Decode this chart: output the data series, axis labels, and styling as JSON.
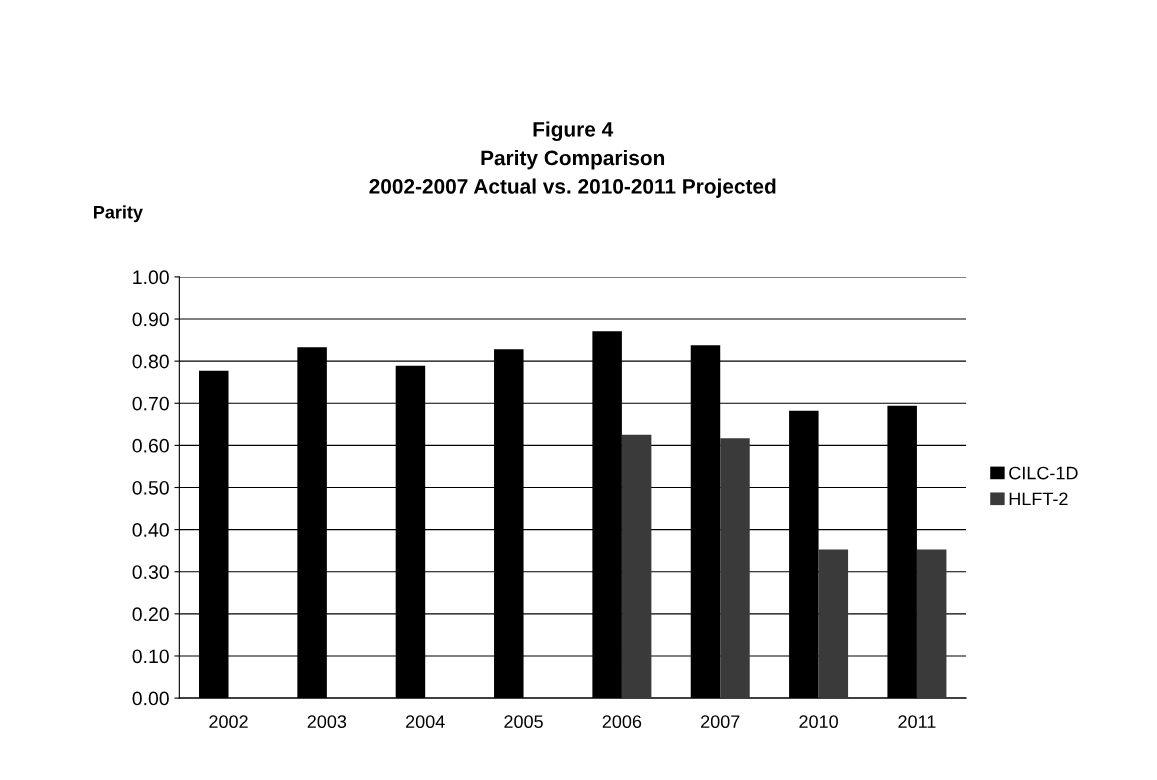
{
  "chart_data": {
    "type": "bar",
    "title": "Figure 4\nParity Comparison\n2002-2007 Actual vs. 2010-2011 Projected",
    "ylabel": "Parity",
    "categories": [
      "2002",
      "2003",
      "2004",
      "2005",
      "2006",
      "2007",
      "2010",
      "2011"
    ],
    "series": [
      {
        "name": "CILC-1D",
        "color": "#000000",
        "values": [
          0.777,
          0.833,
          0.789,
          0.828,
          0.871,
          0.838,
          0.682,
          0.694
        ]
      },
      {
        "name": "HLFT-2",
        "color": "#3a3a3a",
        "values": [
          null,
          null,
          null,
          null,
          0.625,
          0.617,
          0.353,
          0.353
        ]
      }
    ],
    "ylim": [
      0,
      1
    ],
    "yticks": [
      {
        "value": 0,
        "label": "0.00"
      },
      {
        "value": 0.1,
        "label": "0.10"
      },
      {
        "value": 0.2,
        "label": "0.20"
      },
      {
        "value": 0.3,
        "label": "0.30"
      },
      {
        "value": 0.4,
        "label": "0.40"
      },
      {
        "value": 0.5,
        "label": "0.50"
      },
      {
        "value": 0.6,
        "label": "0.60"
      },
      {
        "value": 0.7,
        "label": "0.70"
      },
      {
        "value": 0.8,
        "label": "0.80"
      },
      {
        "value": 0.9,
        "label": "0.90"
      },
      {
        "value": 1.0,
        "label": "1.00"
      }
    ],
    "grid": "y",
    "legend": "right"
  }
}
